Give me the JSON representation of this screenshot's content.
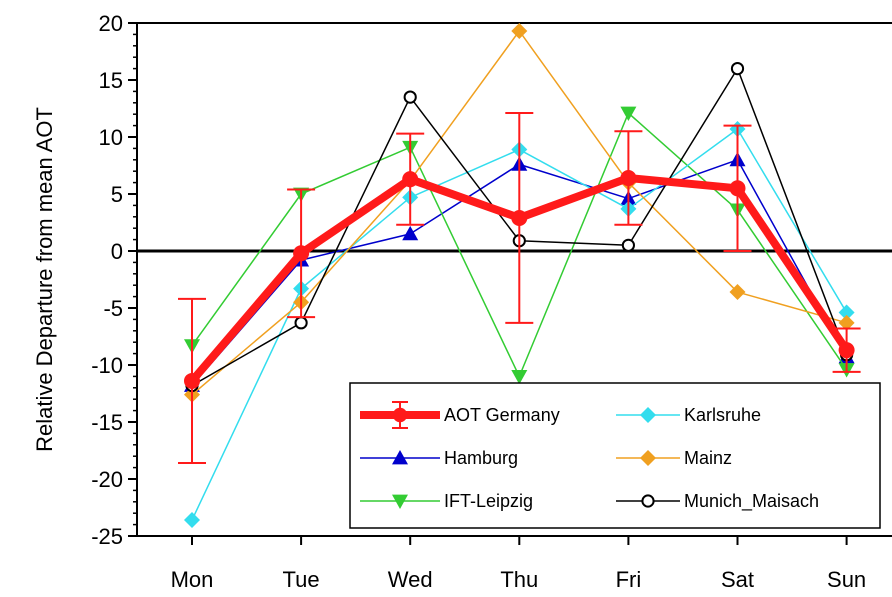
{
  "chart_data": {
    "type": "line",
    "title": "",
    "xlabel": "",
    "ylabel": "Relative Departure from mean AOT",
    "categories": [
      "Mon",
      "Tue",
      "Wed",
      "Thu",
      "Fri",
      "Sat",
      "Sun"
    ],
    "ylim": [
      -25,
      20
    ],
    "yticks": [
      -25,
      -20,
      -15,
      -10,
      -5,
      0,
      5,
      10,
      15,
      20
    ],
    "zero_line": true,
    "legend_position": "bottom-right",
    "series": [
      {
        "name": "Hamburg",
        "color": "#0000cc",
        "marker": "triangle-up",
        "values": [
          -11.8,
          -0.8,
          1.5,
          7.6,
          4.6,
          8.0,
          -9.3
        ]
      },
      {
        "name": "IFT-Leipzig",
        "color": "#33cc33",
        "marker": "triangle-down",
        "values": [
          -8.3,
          5.0,
          9.1,
          -11.0,
          12.1,
          3.6,
          -10.4
        ]
      },
      {
        "name": "Karlsruhe",
        "color": "#33ddee",
        "marker": "diamond",
        "values": [
          -23.6,
          -3.3,
          4.7,
          8.9,
          3.7,
          10.7,
          -5.4
        ]
      },
      {
        "name": "Mainz",
        "color": "#f0a020",
        "marker": "diamond",
        "values": [
          -12.6,
          -4.5,
          6.2,
          19.3,
          6.0,
          -3.6,
          -6.3
        ]
      },
      {
        "name": "Munich_Maisach",
        "color": "#000000",
        "marker": "circle-open",
        "values": [
          -11.8,
          -6.3,
          13.5,
          0.9,
          0.5,
          16.0,
          -9.1
        ]
      },
      {
        "name": "AOT Germany",
        "color": "#ff1a1a",
        "marker": "circle",
        "values": [
          -11.4,
          -0.2,
          6.3,
          2.9,
          6.4,
          5.5,
          -8.7
        ],
        "error": [
          7.2,
          5.6,
          4.0,
          9.2,
          4.1,
          5.5,
          1.9
        ]
      }
    ],
    "legend": [
      {
        "name": "AOT Germany",
        "color": "#ff1a1a",
        "marker": "circle",
        "thick": true
      },
      {
        "name": "Karlsruhe",
        "color": "#33ddee",
        "marker": "diamond"
      },
      {
        "name": "Hamburg",
        "color": "#0000cc",
        "marker": "triangle-up"
      },
      {
        "name": "Mainz",
        "color": "#f0a020",
        "marker": "diamond"
      },
      {
        "name": "IFT-Leipzig",
        "color": "#33cc33",
        "marker": "triangle-down"
      },
      {
        "name": "Munich_Maisach",
        "color": "#000000",
        "marker": "circle-open"
      }
    ]
  }
}
